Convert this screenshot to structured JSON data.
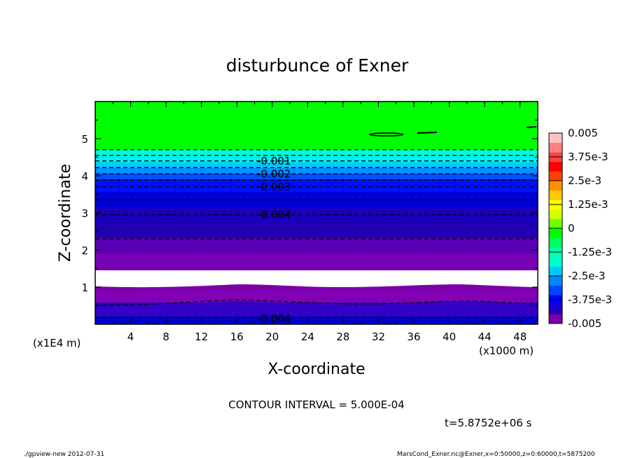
{
  "chart_data": {
    "type": "contour",
    "title": "disturbunce of Exner",
    "xlabel": "X-coordinate",
    "ylabel": "Z-coordinate",
    "x_unit": "(x1000 m)",
    "y_unit": "(x1E4 m)",
    "xlim": [
      0,
      50
    ],
    "ylim": [
      0,
      6
    ],
    "x_ticks": [
      4,
      8,
      12,
      16,
      20,
      24,
      28,
      32,
      36,
      40,
      44,
      48
    ],
    "y_ticks": [
      1,
      2,
      3,
      4,
      5
    ],
    "contour_interval_text": "CONTOUR INTERVAL = 5.000E-04",
    "time_text": "t=5.8752e+06 s",
    "contour_labels": [
      {
        "text": "-0.001",
        "x": 20.2,
        "y": 4.4
      },
      {
        "text": "-0.002",
        "x": 20.2,
        "y": 4.05
      },
      {
        "text": "-0.003",
        "x": 20.2,
        "y": 3.7
      },
      {
        "text": "-0.004",
        "x": 20.2,
        "y": 2.95
      },
      {
        "text": "-0.004",
        "x": 20.2,
        "y": 0.15
      }
    ],
    "dashed_levels_z": [
      4.7,
      4.55,
      4.4,
      4.22,
      4.05,
      3.88,
      3.7,
      3.35,
      2.95,
      2.3
    ],
    "colorbar": {
      "ticks": [
        "0.005",
        "3.75e-3",
        "2.5e-3",
        "1.25e-3",
        "0",
        "-1.25e-3",
        "-2.5e-3",
        "-3.75e-3",
        "-0.005"
      ],
      "colors": [
        "#7a00a8",
        "#2200c0",
        "#0000ff",
        "#0044ff",
        "#0088ff",
        "#00c8ff",
        "#00ffd0",
        "#00ffb0",
        "#00ff60",
        "#00ff00",
        "#70ff00",
        "#d0ff00",
        "#ffff00",
        "#ffc800",
        "#ff9000",
        "#ff4000",
        "#ff0000",
        "#ff4040",
        "#ff8080",
        "#ffc0c0"
      ]
    }
  },
  "footer": {
    "left": "./gpview-new   2012-07-31",
    "right": "MarsCond_Exner.nc@Exner,x=0:50000,z=0:60000,t=5875200"
  }
}
